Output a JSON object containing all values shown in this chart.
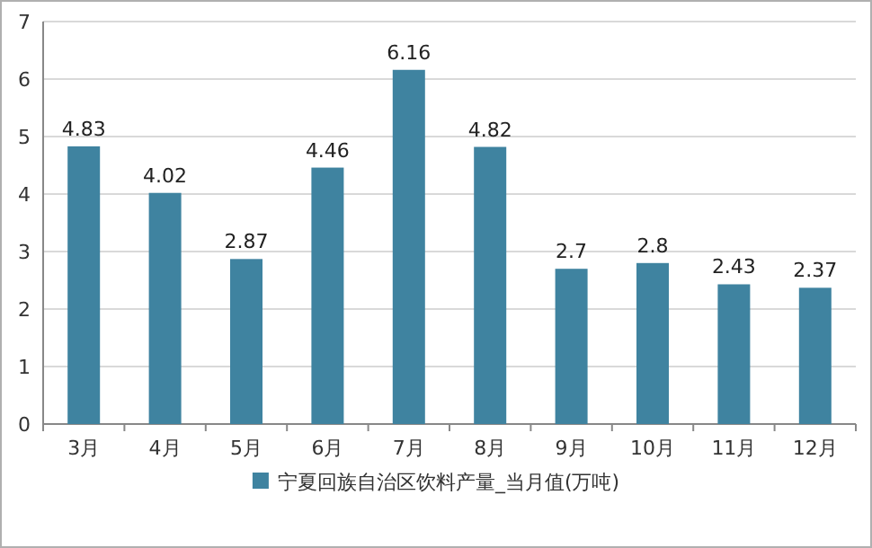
{
  "chart_data": {
    "type": "bar",
    "categories": [
      "3月",
      "4月",
      "5月",
      "6月",
      "7月",
      "8月",
      "9月",
      "10月",
      "11月",
      "12月"
    ],
    "series": [
      {
        "name": "宁夏回族自治区饮料产量_当月值(万吨)",
        "color": "#3f83a0",
        "values": [
          4.83,
          4.02,
          2.87,
          4.46,
          6.16,
          4.82,
          2.7,
          2.8,
          2.43,
          2.37
        ]
      }
    ],
    "ylim": [
      0,
      7
    ],
    "yticks": [
      0,
      1,
      2,
      3,
      4,
      5,
      6,
      7
    ],
    "grid": "y",
    "legend": "bottom",
    "data_labels": true
  }
}
